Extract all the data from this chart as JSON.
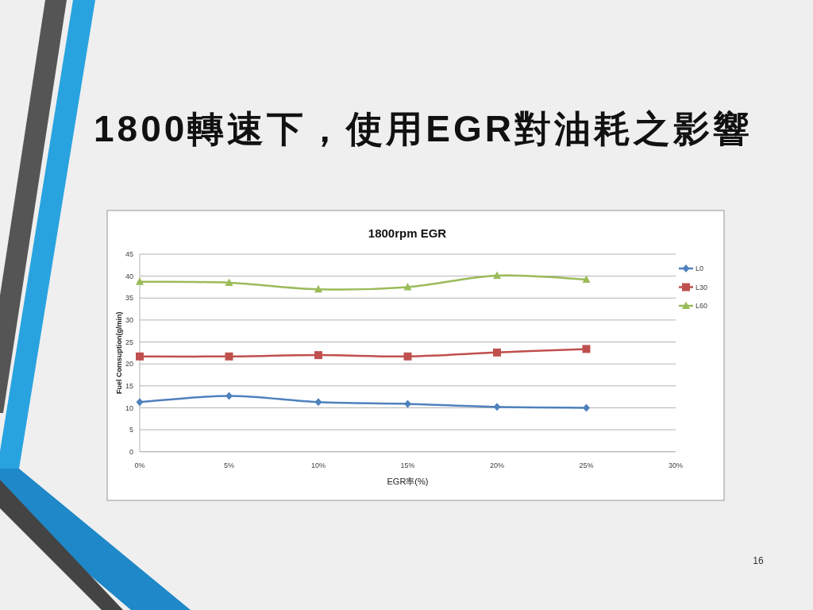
{
  "chart_data": {
    "type": "line",
    "title": "1800轉速下，使用EGR對油耗之影響",
    "subtitle": "1800rpm EGR",
    "xlabel": "EGR率(%)",
    "ylabel": "Fuel Comsuption(g/min)",
    "x": [
      0,
      5,
      10,
      15,
      20,
      25
    ],
    "xlim": [
      0,
      30
    ],
    "xticks": [
      {
        "value": 0,
        "label": "0%"
      },
      {
        "value": 5,
        "label": "5%"
      },
      {
        "value": 10,
        "label": "10%"
      },
      {
        "value": 15,
        "label": "15%"
      },
      {
        "value": 20,
        "label": "20%"
      },
      {
        "value": 25,
        "label": "25%"
      },
      {
        "value": 30,
        "label": "30%"
      }
    ],
    "ylim": [
      0,
      45
    ],
    "yticks": [
      0,
      5,
      10,
      15,
      20,
      25,
      30,
      35,
      40,
      45
    ],
    "grid": "y",
    "legend": "right",
    "series": [
      {
        "name": "L0",
        "color": "#4f81bd",
        "marker": "diamond",
        "values": [
          11.3,
          12.7,
          11.3,
          10.9,
          10.2,
          10.0
        ]
      },
      {
        "name": "L30",
        "color": "#c0504d",
        "marker": "square",
        "values": [
          21.7,
          21.7,
          22.0,
          21.7,
          22.6,
          23.4
        ]
      },
      {
        "name": "L60",
        "color": "#9bbb59",
        "marker": "triangle",
        "values": [
          38.7,
          38.5,
          37.0,
          37.5,
          40.1,
          39.2
        ]
      }
    ],
    "annotations": [
      "16"
    ]
  }
}
